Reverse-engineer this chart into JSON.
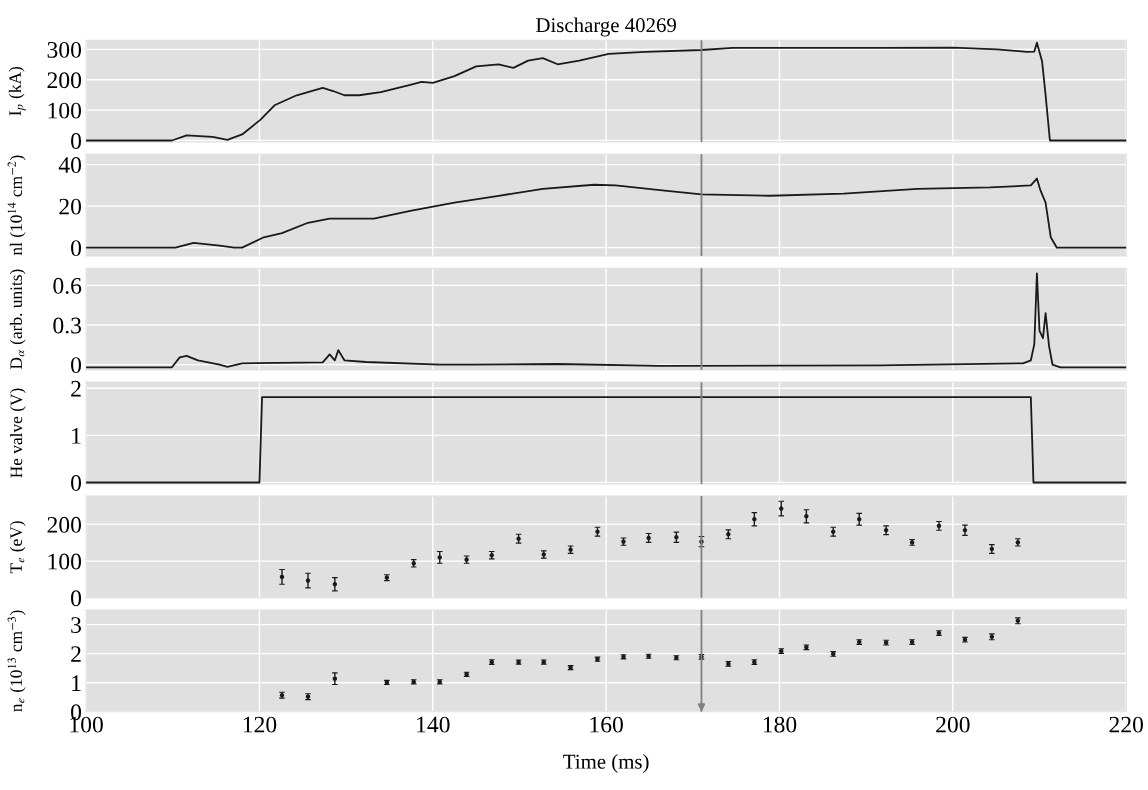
{
  "chart_data": [
    {
      "type": "line",
      "title": "Discharge 40269",
      "ylabel": "I$_{p}$ (kA)",
      "xlim": [
        100,
        220
      ],
      "xticks": [
        100,
        120,
        140,
        160,
        180,
        200,
        220
      ],
      "ylim": [
        -5,
        330
      ],
      "yticks": [
        0,
        100,
        200,
        300
      ],
      "grid": true,
      "tick_labels": "y",
      "marker": "none",
      "line_style": "solid",
      "ref_lines": [
        {
          "axis": "x",
          "value": 171,
          "color": "#808080"
        }
      ],
      "series": [
        {
          "color": "#1a1a1a",
          "x": [
            100,
            109.9,
            111.6,
            114.6,
            116.3,
            118,
            120.1,
            121.8,
            124.3,
            127.3,
            128.5,
            129.8,
            131.5,
            134,
            137.4,
            138.7,
            140,
            142.5,
            145,
            147.6,
            149.3,
            151,
            152.7,
            154.4,
            156.9,
            160.3,
            164.5,
            171,
            174.6,
            191.5,
            200,
            205.1,
            208.5,
            209.4,
            209.7,
            210.3,
            210.7,
            211.2,
            212,
            220
          ],
          "values": [
            0,
            0,
            17,
            12,
            2,
            20,
            68,
            117,
            149,
            173,
            163,
            149,
            149,
            159,
            183,
            193,
            190,
            212,
            244,
            251,
            239,
            263,
            271,
            251,
            263,
            285,
            292,
            298,
            305,
            305,
            306,
            300,
            292,
            293,
            322,
            260,
            150,
            0,
            0,
            0
          ]
        }
      ]
    },
    {
      "type": "line",
      "ylabel": "nl (10$^{14}$ cm$^{−2}$)",
      "xlim": [
        100,
        220
      ],
      "xticks": [
        100,
        120,
        140,
        160,
        180,
        200,
        220
      ],
      "ylim": [
        -4,
        45
      ],
      "yticks": [
        0,
        20,
        40
      ],
      "grid": true,
      "tick_labels": "y",
      "marker": "none",
      "line_style": "solid",
      "ref_lines": [
        {
          "axis": "x",
          "value": 171,
          "color": "#808080"
        }
      ],
      "series": [
        {
          "color": "#1a1a1a",
          "x": [
            100,
            110.3,
            112.4,
            115.4,
            117.1,
            118,
            120.5,
            122.6,
            125.6,
            128.1,
            133.2,
            137.4,
            142.5,
            147.6,
            152.7,
            158.6,
            161.1,
            166.2,
            171,
            178.9,
            187.4,
            195.9,
            204.3,
            209,
            209.7,
            210.1,
            210.7,
            211.3,
            212,
            220
          ],
          "values": [
            0,
            0,
            2.3,
            1,
            0,
            0,
            5,
            7,
            12,
            14,
            14,
            17.7,
            21.7,
            25,
            28.3,
            30.3,
            30,
            27.7,
            25.7,
            25,
            26,
            28.3,
            29,
            30,
            33.3,
            27.7,
            21.7,
            5,
            0,
            0
          ]
        }
      ]
    },
    {
      "type": "line",
      "ylabel": "D$_{α}$ (arb. units)",
      "xlim": [
        100,
        220
      ],
      "xticks": [
        100,
        120,
        140,
        160,
        180,
        200,
        220
      ],
      "ylim": [
        -0.04,
        0.73
      ],
      "yticks": [
        0,
        0.3,
        0.6
      ],
      "grid": true,
      "tick_labels": "y",
      "marker": "none",
      "line_style": "solid",
      "ref_lines": [
        {
          "axis": "x",
          "value": 171,
          "color": "#808080"
        }
      ],
      "series": [
        {
          "color": "#1a1a1a",
          "x": [
            100,
            109.9,
            110.8,
            111.6,
            112.9,
            115.4,
            116.3,
            118,
            127.3,
            128.1,
            128.7,
            129.1,
            129.8,
            132.3,
            140.8,
            144.6,
            154.4,
            166.2,
            191.5,
            208.1,
            209,
            209.4,
            209.7,
            210,
            210.4,
            210.7,
            211.1,
            211.5,
            212.4,
            220
          ],
          "values": [
            -0.02,
            -0.02,
            0.055,
            0.067,
            0.033,
            0,
            -0.017,
            0.01,
            0.017,
            0.078,
            0.033,
            0.11,
            0.033,
            0.02,
            0,
            0,
            0.005,
            -0.01,
            -0.005,
            0.01,
            0.033,
            0.155,
            0.69,
            0.255,
            0.2,
            0.39,
            0.14,
            0,
            -0.02,
            -0.02
          ]
        }
      ]
    },
    {
      "type": "line",
      "ylabel": "He valve (V)",
      "xlim": [
        100,
        220
      ],
      "xticks": [
        100,
        120,
        140,
        160,
        180,
        200,
        220
      ],
      "ylim": [
        -0.03,
        2.13
      ],
      "yticks": [
        0,
        1,
        2
      ],
      "grid": true,
      "tick_labels": "y",
      "marker": "none",
      "line_style": "solid",
      "ref_lines": [
        {
          "axis": "x",
          "value": 171,
          "color": "#808080"
        }
      ],
      "series": [
        {
          "color": "#1a1a1a",
          "x": [
            100,
            120,
            120.3,
            209,
            209.3,
            220
          ],
          "values": [
            0,
            0,
            1.81,
            1.81,
            0,
            0
          ]
        }
      ]
    },
    {
      "type": "scatter",
      "ylabel": "T$_{e}$ (eV)",
      "xlim": [
        100,
        220
      ],
      "xticks": [
        100,
        120,
        140,
        160,
        180,
        200,
        220
      ],
      "ylim": [
        0,
        277
      ],
      "yticks": [
        0,
        100,
        200
      ],
      "grid": true,
      "tick_labels": "y",
      "marker": "circle",
      "ref_lines": [
        {
          "axis": "x",
          "value": 171,
          "color": "#808080"
        }
      ],
      "series": [
        {
          "color": "#1a1a1a",
          "x": [
            122.6,
            125.6,
            128.7,
            134.7,
            137.8,
            140.8,
            143.9,
            146.8,
            149.9,
            152.8,
            155.9,
            159,
            162,
            164.9,
            168.1,
            171,
            174.1,
            177.1,
            180.2,
            183.1,
            186.2,
            189.2,
            192.3,
            195.3,
            198.4,
            201.4,
            204.5,
            207.5
          ],
          "values": [
            57,
            47,
            37,
            55,
            94,
            110,
            104,
            116,
            161,
            118,
            131,
            180,
            153,
            163,
            165,
            153,
            173,
            214,
            243,
            222,
            180,
            214,
            184,
            151,
            196,
            184,
            133,
            151
          ],
          "errors": [
            20,
            20,
            18,
            8,
            10,
            16,
            10,
            10,
            12,
            10,
            10,
            12,
            10,
            12,
            14,
            14,
            12,
            18,
            20,
            18,
            12,
            16,
            12,
            8,
            12,
            14,
            12,
            10
          ]
        }
      ]
    },
    {
      "type": "scatter",
      "ylabel": "n$_{e}$ (10$^{13}$ cm$^{−3}$)",
      "xlabel": "Time (ms)",
      "xlim": [
        100,
        220
      ],
      "xticks": [
        100,
        120,
        140,
        160,
        180,
        200,
        220
      ],
      "ylim": [
        0,
        3.5
      ],
      "yticks": [
        0,
        1,
        2,
        3
      ],
      "grid": true,
      "marker": "circle",
      "ref_lines": [
        {
          "axis": "x",
          "value": 171,
          "color": "#808080"
        }
      ],
      "series": [
        {
          "color": "#1a1a1a",
          "x": [
            122.6,
            125.6,
            128.7,
            134.7,
            137.8,
            140.8,
            143.9,
            146.8,
            149.9,
            152.8,
            155.9,
            159,
            162,
            164.9,
            168.1,
            171,
            174.1,
            177.1,
            180.2,
            183.1,
            186.2,
            189.2,
            192.3,
            195.3,
            198.4,
            201.4,
            204.5,
            207.5
          ],
          "values": [
            0.57,
            0.52,
            1.14,
            1.01,
            1.03,
            1.03,
            1.29,
            1.71,
            1.71,
            1.71,
            1.52,
            1.81,
            1.89,
            1.91,
            1.86,
            1.89,
            1.65,
            1.71,
            2.09,
            2.22,
            1.99,
            2.4,
            2.38,
            2.4,
            2.71,
            2.48,
            2.58,
            3.13
          ],
          "errors": [
            0.1,
            0.1,
            0.2,
            0.07,
            0.07,
            0.07,
            0.07,
            0.08,
            0.07,
            0.07,
            0.07,
            0.07,
            0.07,
            0.07,
            0.07,
            0.08,
            0.08,
            0.08,
            0.08,
            0.08,
            0.08,
            0.08,
            0.08,
            0.08,
            0.08,
            0.08,
            0.1,
            0.1
          ]
        }
      ]
    }
  ]
}
